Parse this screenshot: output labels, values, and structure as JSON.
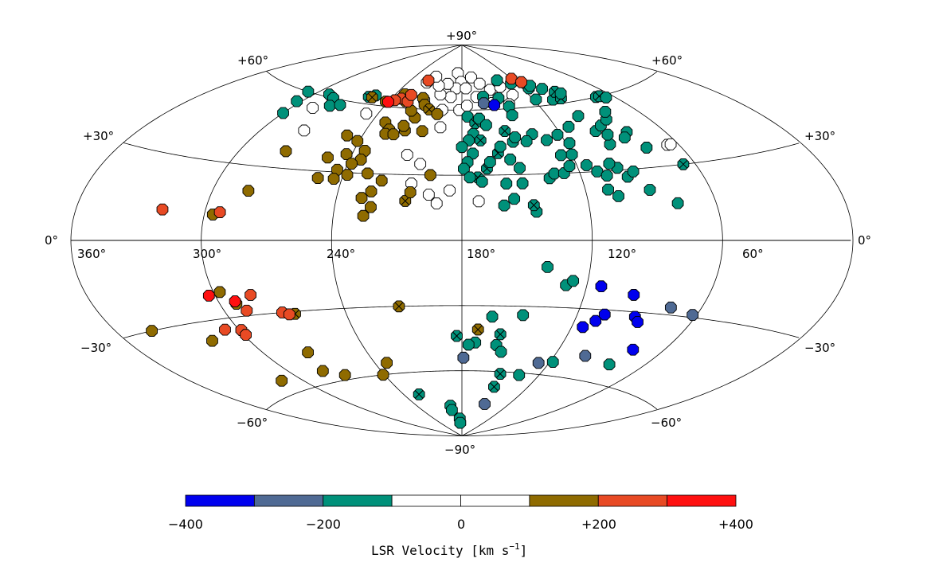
{
  "chart_data": {
    "type": "scatter",
    "projection": "aitoff",
    "coordinate_frame": "galactic",
    "lat_labels": {
      "north_pole": "+90°",
      "south_pole": "−90°",
      "n60": "+60°",
      "n30": "+30°",
      "s30": "−30°",
      "s60": "−60°",
      "equator": "0°"
    },
    "lon_labels": [
      "360°",
      "300°",
      "240°",
      "180°",
      "120°",
      "60°"
    ],
    "graticule_lon": [
      360,
      300,
      240,
      180,
      120,
      60,
      0
    ],
    "graticule_lat": [
      -60,
      -30,
      0,
      30,
      60
    ],
    "grid": true,
    "colorbar": {
      "label": "LSR Velocity [km s",
      "label_superscript": "−1",
      "label_end": "]",
      "ticks": [
        "−400",
        "−200",
        "0",
        "+200",
        "+400"
      ],
      "range": [
        -400,
        400
      ],
      "bins": [
        {
          "from": -400,
          "to": -300,
          "color": "#0000ee"
        },
        {
          "from": -300,
          "to": -200,
          "color": "#4f6a94"
        },
        {
          "from": -200,
          "to": -100,
          "color": "#00917a"
        },
        {
          "from": -100,
          "to": 0,
          "color": "#ffffff"
        },
        {
          "from": 0,
          "to": 100,
          "color": "#ffffff"
        },
        {
          "from": 100,
          "to": 200,
          "color": "#8f6b00"
        },
        {
          "from": 200,
          "to": 300,
          "color": "#e84a24"
        },
        {
          "from": 300,
          "to": 400,
          "color": "#ff1010"
        }
      ]
    },
    "points_note": "l, b in degrees; v = LSR velocity km/s; x = crossed marker",
    "points": [
      {
        "l": 186,
        "b": 77,
        "v": -50
      },
      {
        "l": 181,
        "b": 73,
        "v": -50
      },
      {
        "l": 186,
        "b": 70,
        "v": -50
      },
      {
        "l": 196,
        "b": 72,
        "v": -50
      },
      {
        "l": 190,
        "b": 66,
        "v": -50
      },
      {
        "l": 200,
        "b": 67,
        "v": -50
      },
      {
        "l": 176,
        "b": 70,
        "v": -50
      },
      {
        "l": 168,
        "b": 75,
        "v": -50
      },
      {
        "l": 205,
        "b": 71,
        "v": -50
      },
      {
        "l": 167,
        "b": 66,
        "v": -50
      },
      {
        "l": 160,
        "b": 72,
        "v": -50
      },
      {
        "l": 214,
        "b": 75,
        "v": -50
      },
      {
        "l": 220,
        "b": 72,
        "v": -50
      },
      {
        "l": 212,
        "b": 64,
        "v": -50
      },
      {
        "l": 195,
        "b": 60,
        "v": -50
      },
      {
        "l": 182,
        "b": 60,
        "v": -50
      },
      {
        "l": 176,
        "b": 62,
        "v": -50
      },
      {
        "l": 152,
        "b": 69,
        "v": -50
      },
      {
        "l": 140,
        "b": 70,
        "v": -50
      },
      {
        "l": 134,
        "b": 66,
        "v": -50
      },
      {
        "l": 142,
        "b": 62,
        "v": -50
      },
      {
        "l": 155,
        "b": 63,
        "v": -50
      },
      {
        "l": 248,
        "b": 56,
        "v": -50
      },
      {
        "l": 287,
        "b": 55,
        "v": -50
      },
      {
        "l": 276,
        "b": 46,
        "v": -50
      },
      {
        "l": 194,
        "b": 52,
        "v": -50
      },
      {
        "l": 210,
        "b": 39,
        "v": -50
      },
      {
        "l": 202,
        "b": 35,
        "v": -50
      },
      {
        "l": 205,
        "b": 26,
        "v": -50
      },
      {
        "l": 186,
        "b": 23,
        "v": -50
      },
      {
        "l": 172,
        "b": 18,
        "v": -50
      },
      {
        "l": 192,
        "b": 17,
        "v": -50
      },
      {
        "l": 196,
        "b": 21,
        "v": -50
      },
      {
        "l": 66,
        "b": 38,
        "v": -50
      },
      {
        "l": 64,
        "b": 38,
        "v": -50
      },
      {
        "l": 176,
        "b": 57,
        "v": -150
      },
      {
        "l": 171,
        "b": 54,
        "v": -150,
        "x": true
      },
      {
        "l": 168,
        "b": 56,
        "v": -150
      },
      {
        "l": 173,
        "b": 49,
        "v": -150
      },
      {
        "l": 176,
        "b": 46,
        "v": -150
      },
      {
        "l": 180,
        "b": 43,
        "v": -150
      },
      {
        "l": 174,
        "b": 40,
        "v": -150
      },
      {
        "l": 177,
        "b": 36,
        "v": -150
      },
      {
        "l": 179,
        "b": 33,
        "v": -150
      },
      {
        "l": 167,
        "b": 33,
        "v": -150,
        "x": true
      },
      {
        "l": 165,
        "b": 36,
        "v": -150
      },
      {
        "l": 172,
        "b": 29,
        "v": -150,
        "x": true
      },
      {
        "l": 176,
        "b": 29,
        "v": -150
      },
      {
        "l": 170,
        "b": 27,
        "v": -150
      },
      {
        "l": 160,
        "b": 40,
        "v": -150,
        "x": true
      },
      {
        "l": 158,
        "b": 43,
        "v": -150
      },
      {
        "l": 154,
        "b": 37,
        "v": -150
      },
      {
        "l": 150,
        "b": 33,
        "v": -150
      },
      {
        "l": 150,
        "b": 26,
        "v": -150
      },
      {
        "l": 158,
        "b": 26,
        "v": -150
      },
      {
        "l": 155,
        "b": 19,
        "v": -150
      },
      {
        "l": 160,
        "b": 16,
        "v": -150
      },
      {
        "l": 145,
        "b": 13,
        "v": -150
      },
      {
        "l": 146,
        "b": 16,
        "v": -150,
        "x": true
      },
      {
        "l": 136,
        "b": 28,
        "v": -150
      },
      {
        "l": 133,
        "b": 30,
        "v": -150
      },
      {
        "l": 128,
        "b": 30,
        "v": -150
      },
      {
        "l": 124,
        "b": 33,
        "v": -150
      },
      {
        "l": 126,
        "b": 38,
        "v": -150
      },
      {
        "l": 120,
        "b": 38,
        "v": -150
      },
      {
        "l": 115,
        "b": 33,
        "v": -150
      },
      {
        "l": 111,
        "b": 30,
        "v": -150
      },
      {
        "l": 107,
        "b": 28,
        "v": -150
      },
      {
        "l": 109,
        "b": 22,
        "v": -150
      },
      {
        "l": 105,
        "b": 19,
        "v": -150
      },
      {
        "l": 100,
        "b": 31,
        "v": -150
      },
      {
        "l": 97,
        "b": 27,
        "v": -150
      },
      {
        "l": 93,
        "b": 29,
        "v": -150
      },
      {
        "l": 103,
        "b": 33,
        "v": -150
      },
      {
        "l": 96,
        "b": 41,
        "v": -150
      },
      {
        "l": 93,
        "b": 45,
        "v": -150
      },
      {
        "l": 98,
        "b": 47,
        "v": -150
      },
      {
        "l": 92,
        "b": 49,
        "v": -150
      },
      {
        "l": 100,
        "b": 54,
        "v": -150
      },
      {
        "l": 112,
        "b": 50,
        "v": -150
      },
      {
        "l": 122,
        "b": 47,
        "v": -150
      },
      {
        "l": 118,
        "b": 43,
        "v": -150
      },
      {
        "l": 130,
        "b": 45,
        "v": -150
      },
      {
        "l": 137,
        "b": 48,
        "v": -150
      },
      {
        "l": 142,
        "b": 45,
        "v": -150
      },
      {
        "l": 150,
        "b": 45,
        "v": -150
      },
      {
        "l": 148,
        "b": 47,
        "v": -150
      },
      {
        "l": 153,
        "b": 50,
        "v": -150,
        "x": true
      },
      {
        "l": 164,
        "b": 53,
        "v": -150
      },
      {
        "l": 169,
        "b": 46,
        "v": -150,
        "x": true
      },
      {
        "l": 143,
        "b": 61,
        "v": -150
      },
      {
        "l": 148,
        "b": 65,
        "v": -150
      },
      {
        "l": 138,
        "b": 73,
        "v": -150
      },
      {
        "l": 126,
        "b": 71,
        "v": -150
      },
      {
        "l": 114,
        "b": 68,
        "v": -150
      },
      {
        "l": 110,
        "b": 69,
        "v": -150
      },
      {
        "l": 103,
        "b": 67,
        "v": -150
      },
      {
        "l": 118,
        "b": 63,
        "v": -150
      },
      {
        "l": 105,
        "b": 62,
        "v": -150
      },
      {
        "l": 96,
        "b": 65,
        "v": -150,
        "x": true
      },
      {
        "l": 98,
        "b": 62,
        "v": -150,
        "x": true
      },
      {
        "l": 93,
        "b": 64,
        "v": -150
      },
      {
        "l": 85,
        "b": 51,
        "v": -150
      },
      {
        "l": 80,
        "b": 54,
        "v": -150
      },
      {
        "l": 72,
        "b": 60,
        "v": -150
      },
      {
        "l": 69,
        "b": 60,
        "v": -150,
        "x": true
      },
      {
        "l": 66,
        "b": 59,
        "v": -150
      },
      {
        "l": 81,
        "b": 45,
        "v": -150
      },
      {
        "l": 85,
        "b": 43,
        "v": -150
      },
      {
        "l": 78,
        "b": 38,
        "v": -150
      },
      {
        "l": 66,
        "b": 30,
        "v": -150,
        "x": true
      },
      {
        "l": 89,
        "b": 21,
        "v": -150
      },
      {
        "l": 78,
        "b": 15,
        "v": -150
      },
      {
        "l": 144,
        "b": 57,
        "v": -150
      },
      {
        "l": 161,
        "b": 66,
        "v": -150
      },
      {
        "l": 300,
        "b": 51,
        "v": -150
      },
      {
        "l": 307,
        "b": 60,
        "v": -150
      },
      {
        "l": 303,
        "b": 56,
        "v": -150
      },
      {
        "l": 290,
        "b": 61,
        "v": -150
      },
      {
        "l": 283,
        "b": 60,
        "v": -150
      },
      {
        "l": 278,
        "b": 57,
        "v": -150
      },
      {
        "l": 272,
        "b": 58,
        "v": -150
      },
      {
        "l": 259,
        "b": 63,
        "v": -150,
        "x": true
      },
      {
        "l": 255,
        "b": 64,
        "v": -150
      },
      {
        "l": 140,
        "b": -12,
        "v": -150
      },
      {
        "l": 130,
        "b": -20,
        "v": -150
      },
      {
        "l": 127,
        "b": -18,
        "v": -150
      },
      {
        "l": 159,
        "b": -48,
        "v": -150
      },
      {
        "l": 148,
        "b": -34,
        "v": -150
      },
      {
        "l": 164,
        "b": -35,
        "v": -150
      },
      {
        "l": 172,
        "b": -47,
        "v": -150
      },
      {
        "l": 176,
        "b": -48,
        "v": -150
      },
      {
        "l": 158,
        "b": -43,
        "v": -150,
        "x": true
      },
      {
        "l": 155,
        "b": -51,
        "v": -150
      },
      {
        "l": 183,
        "b": -44,
        "v": -150,
        "x": true
      },
      {
        "l": 150,
        "b": -61,
        "v": -150,
        "x": true
      },
      {
        "l": 150,
        "b": -67,
        "v": -150,
        "x": true
      },
      {
        "l": 135,
        "b": -61,
        "v": -150
      },
      {
        "l": 118,
        "b": -54,
        "v": -150
      },
      {
        "l": 81,
        "b": -52,
        "v": -150
      },
      {
        "l": 196,
        "b": -76,
        "v": -150
      },
      {
        "l": 196,
        "b": -78,
        "v": -150
      },
      {
        "l": 185,
        "b": -82,
        "v": -150
      },
      {
        "l": 185,
        "b": -84,
        "v": -150
      },
      {
        "l": 225,
        "b": -70,
        "v": -150,
        "x": true
      },
      {
        "l": 162,
        "b": 63,
        "v": -250
      },
      {
        "l": 127,
        "b": -55,
        "v": -250
      },
      {
        "l": 101,
        "b": -50,
        "v": -250
      },
      {
        "l": 179,
        "b": -54,
        "v": -250
      },
      {
        "l": 150,
        "b": -75,
        "v": -250
      },
      {
        "l": 75,
        "b": -27,
        "v": -250
      },
      {
        "l": 62,
        "b": -29,
        "v": -250
      },
      {
        "l": 154,
        "b": 62,
        "v": -350
      },
      {
        "l": 113,
        "b": -20,
        "v": -350
      },
      {
        "l": 96,
        "b": -23,
        "v": -350
      },
      {
        "l": 106,
        "b": -32,
        "v": -350
      },
      {
        "l": 90,
        "b": -32,
        "v": -350
      },
      {
        "l": 87,
        "b": -34,
        "v": -350
      },
      {
        "l": 109,
        "b": -35,
        "v": -350
      },
      {
        "l": 114,
        "b": -38,
        "v": -350
      },
      {
        "l": 77,
        "b": -45,
        "v": -350
      },
      {
        "l": 214,
        "b": 65,
        "v": 150
      },
      {
        "l": 210,
        "b": 62,
        "v": 150
      },
      {
        "l": 205,
        "b": 60,
        "v": 150,
        "x": true
      },
      {
        "l": 213,
        "b": 56,
        "v": 150
      },
      {
        "l": 198,
        "b": 58,
        "v": 150
      },
      {
        "l": 231,
        "b": 53,
        "v": 150
      },
      {
        "l": 226,
        "b": 50,
        "v": 150
      },
      {
        "l": 227,
        "b": 48,
        "v": 150
      },
      {
        "l": 222,
        "b": 48,
        "v": 150
      },
      {
        "l": 216,
        "b": 50,
        "v": 150
      },
      {
        "l": 218,
        "b": 52,
        "v": 150
      },
      {
        "l": 205,
        "b": 50,
        "v": 150
      },
      {
        "l": 249,
        "b": 46,
        "v": 150
      },
      {
        "l": 241,
        "b": 44,
        "v": 150
      },
      {
        "l": 234,
        "b": 40,
        "v": 150
      },
      {
        "l": 243,
        "b": 38,
        "v": 150
      },
      {
        "l": 234,
        "b": 36,
        "v": 150
      },
      {
        "l": 238,
        "b": 34,
        "v": 150
      },
      {
        "l": 252,
        "b": 36,
        "v": 150
      },
      {
        "l": 244,
        "b": 31,
        "v": 150
      },
      {
        "l": 252,
        "b": 27,
        "v": 150
      },
      {
        "l": 244,
        "b": 27,
        "v": 150
      },
      {
        "l": 238,
        "b": 29,
        "v": 150
      },
      {
        "l": 228,
        "b": 30,
        "v": 150
      },
      {
        "l": 220,
        "b": 27,
        "v": 150
      },
      {
        "l": 224,
        "b": 22,
        "v": 150
      },
      {
        "l": 223,
        "b": 15,
        "v": 150
      },
      {
        "l": 226,
        "b": 11,
        "v": 150
      },
      {
        "l": 207,
        "b": 18,
        "v": 150,
        "x": true
      },
      {
        "l": 205,
        "b": 22,
        "v": 150
      },
      {
        "l": 196,
        "b": 30,
        "v": 150
      },
      {
        "l": 242,
        "b": 62,
        "v": 150
      },
      {
        "l": 232,
        "b": 66,
        "v": 150
      },
      {
        "l": 227,
        "b": 63,
        "v": 150
      },
      {
        "l": 218,
        "b": 59,
        "v": 150
      },
      {
        "l": 256,
        "b": 63,
        "v": 150,
        "x": true
      },
      {
        "l": 296,
        "b": 10,
        "v": 150
      },
      {
        "l": 283,
        "b": 20,
        "v": 150
      },
      {
        "l": 276,
        "b": 37,
        "v": 150
      },
      {
        "l": 228,
        "b": 19,
        "v": 150
      },
      {
        "l": 297,
        "b": -20,
        "v": 150
      },
      {
        "l": 292,
        "b": -25,
        "v": 150
      },
      {
        "l": 343,
        "b": -30,
        "v": 150
      },
      {
        "l": 319,
        "b": -37,
        "v": 150
      },
      {
        "l": 266,
        "b": -31,
        "v": 150,
        "x": true
      },
      {
        "l": 212,
        "b": -30,
        "v": 150,
        "x": true
      },
      {
        "l": 171,
        "b": -41,
        "v": 150,
        "x": true
      },
      {
        "l": 275,
        "b": -47,
        "v": 150
      },
      {
        "l": 279,
        "b": -55,
        "v": 150
      },
      {
        "l": 268,
        "b": -58,
        "v": 150
      },
      {
        "l": 241,
        "b": -60,
        "v": 150
      },
      {
        "l": 232,
        "b": -55,
        "v": 150
      },
      {
        "l": 313,
        "b": -55,
        "v": 150
      },
      {
        "l": 220,
        "b": 73,
        "v": 250
      },
      {
        "l": 232,
        "b": 64,
        "v": 250
      },
      {
        "l": 236,
        "b": 63,
        "v": 250
      },
      {
        "l": 225,
        "b": 63,
        "v": 250
      },
      {
        "l": 226,
        "b": 66,
        "v": 250
      },
      {
        "l": 293,
        "b": 11,
        "v": 250
      },
      {
        "l": 320,
        "b": 11,
        "v": 250
      },
      {
        "l": 120,
        "b": 73,
        "v": 250
      },
      {
        "l": 114,
        "b": 71,
        "v": 250
      },
      {
        "l": 283,
        "b": -22,
        "v": 250
      },
      {
        "l": 289,
        "b": -28,
        "v": 250
      },
      {
        "l": 272,
        "b": -30,
        "v": 250
      },
      {
        "l": 269,
        "b": -31,
        "v": 250
      },
      {
        "l": 307,
        "b": -34,
        "v": 250
      },
      {
        "l": 299,
        "b": -35,
        "v": 250
      },
      {
        "l": 299,
        "b": -37,
        "v": 250
      },
      {
        "l": 240,
        "b": 62,
        "v": 350
      },
      {
        "l": 292,
        "b": -24,
        "v": 350
      },
      {
        "l": 303,
        "b": -21,
        "v": 350
      }
    ]
  }
}
